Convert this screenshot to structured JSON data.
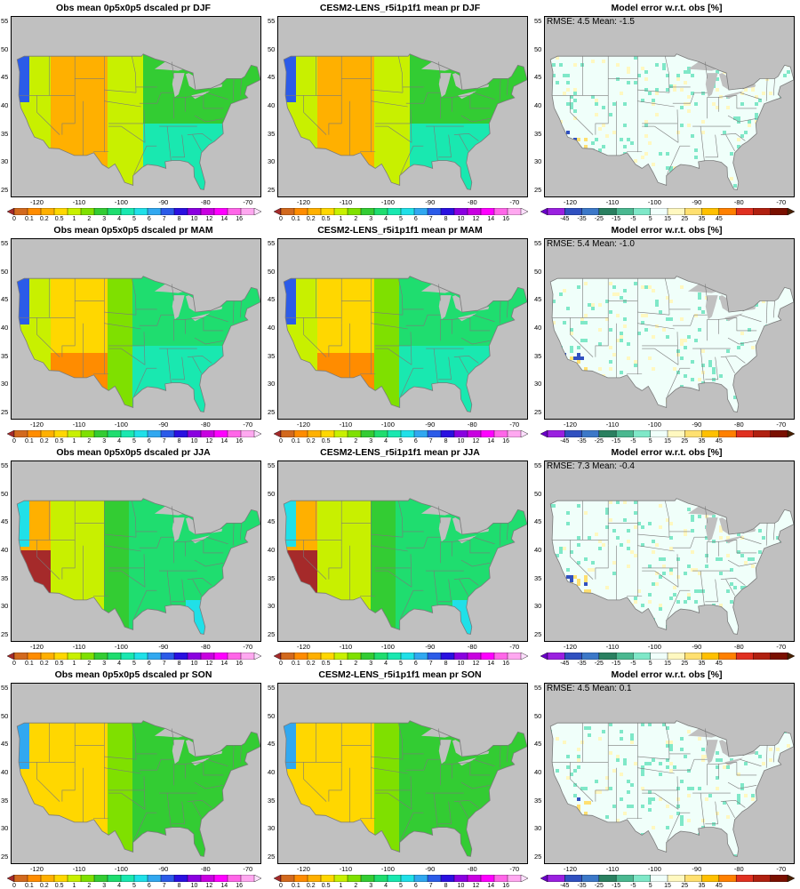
{
  "seasons": [
    {
      "season": "DJF",
      "obs": {
        "title": "Obs mean 0p5x0p5 dscaled pr DJF"
      },
      "model": {
        "title": "CESM2-LENS_r5i1p1f1 mean pr DJF"
      },
      "diff": {
        "title": "Model error w.r.t. obs [%]",
        "stats": "RMSE: 4.5  Mean: -1.5"
      }
    },
    {
      "season": "MAM",
      "obs": {
        "title": "Obs mean 0p5x0p5 dscaled pr MAM"
      },
      "model": {
        "title": "CESM2-LENS_r5i1p1f1 mean pr MAM"
      },
      "diff": {
        "title": "Model error w.r.t. obs [%]",
        "stats": "RMSE: 5.4  Mean: -1.0"
      }
    },
    {
      "season": "JJA",
      "obs": {
        "title": "Obs mean 0p5x0p5 dscaled pr JJA"
      },
      "model": {
        "title": "CESM2-LENS_r5i1p1f1 mean pr JJA"
      },
      "diff": {
        "title": "Model error w.r.t. obs [%]",
        "stats": "RMSE: 7.3  Mean: -0.4"
      }
    },
    {
      "season": "SON",
      "obs": {
        "title": "Obs mean 0p5x0p5 dscaled pr SON"
      },
      "model": {
        "title": "CESM2-LENS_r5i1p1f1 mean pr SON"
      },
      "diff": {
        "title": "Model error w.r.t. obs [%]",
        "stats": "RMSE: 4.5  Mean: 0.1"
      }
    }
  ],
  "axes": {
    "lon_ticks": [
      "-120",
      "-110",
      "-100",
      "-90",
      "-80",
      "-70"
    ],
    "lon_values": [
      -120,
      -110,
      -100,
      -90,
      -80,
      -70
    ],
    "lat_ticks": [
      "55",
      "50",
      "45",
      "40",
      "35",
      "30",
      "25"
    ],
    "lat_values": [
      55,
      50,
      45,
      40,
      35,
      30,
      25
    ],
    "lon_range": [
      -126,
      -67
    ],
    "lat_range": [
      24,
      56
    ]
  },
  "precip_colorbar": {
    "labels": [
      "0",
      "0.1",
      "0.2",
      "0.5",
      "1",
      "2",
      "3",
      "4",
      "5",
      "6",
      "7",
      "8",
      "10",
      "12",
      "14",
      "16"
    ],
    "colors": [
      "#a52a2a",
      "#d2691e",
      "#ff8c00",
      "#ffb000",
      "#ffd700",
      "#c8f000",
      "#7fe000",
      "#33cc33",
      "#1fdd6f",
      "#19e8b0",
      "#20e0e8",
      "#31a8f0",
      "#2b5be8",
      "#2a10e0",
      "#8a00e0",
      "#c800e0",
      "#ff00ff",
      "#ff66e8",
      "#ffa8f0",
      "#ffe0ff"
    ]
  },
  "diff_colorbar": {
    "labels": [
      "-45",
      "-35",
      "-25",
      "-15",
      "-5",
      "5",
      "15",
      "25",
      "35",
      "45"
    ],
    "colors": [
      "#6a00c8",
      "#9a20e0",
      "#3050c0",
      "#3c78c8",
      "#2a8060",
      "#4ab890",
      "#7fe8c8",
      "#f0fffa",
      "#fff8c0",
      "#ffe070",
      "#ffc000",
      "#ff8000",
      "#e03020",
      "#b02010",
      "#7a1000",
      "#4a2000"
    ]
  },
  "colors": {
    "land_missing": "#c0c0c0",
    "border": "#7a7a7a"
  }
}
